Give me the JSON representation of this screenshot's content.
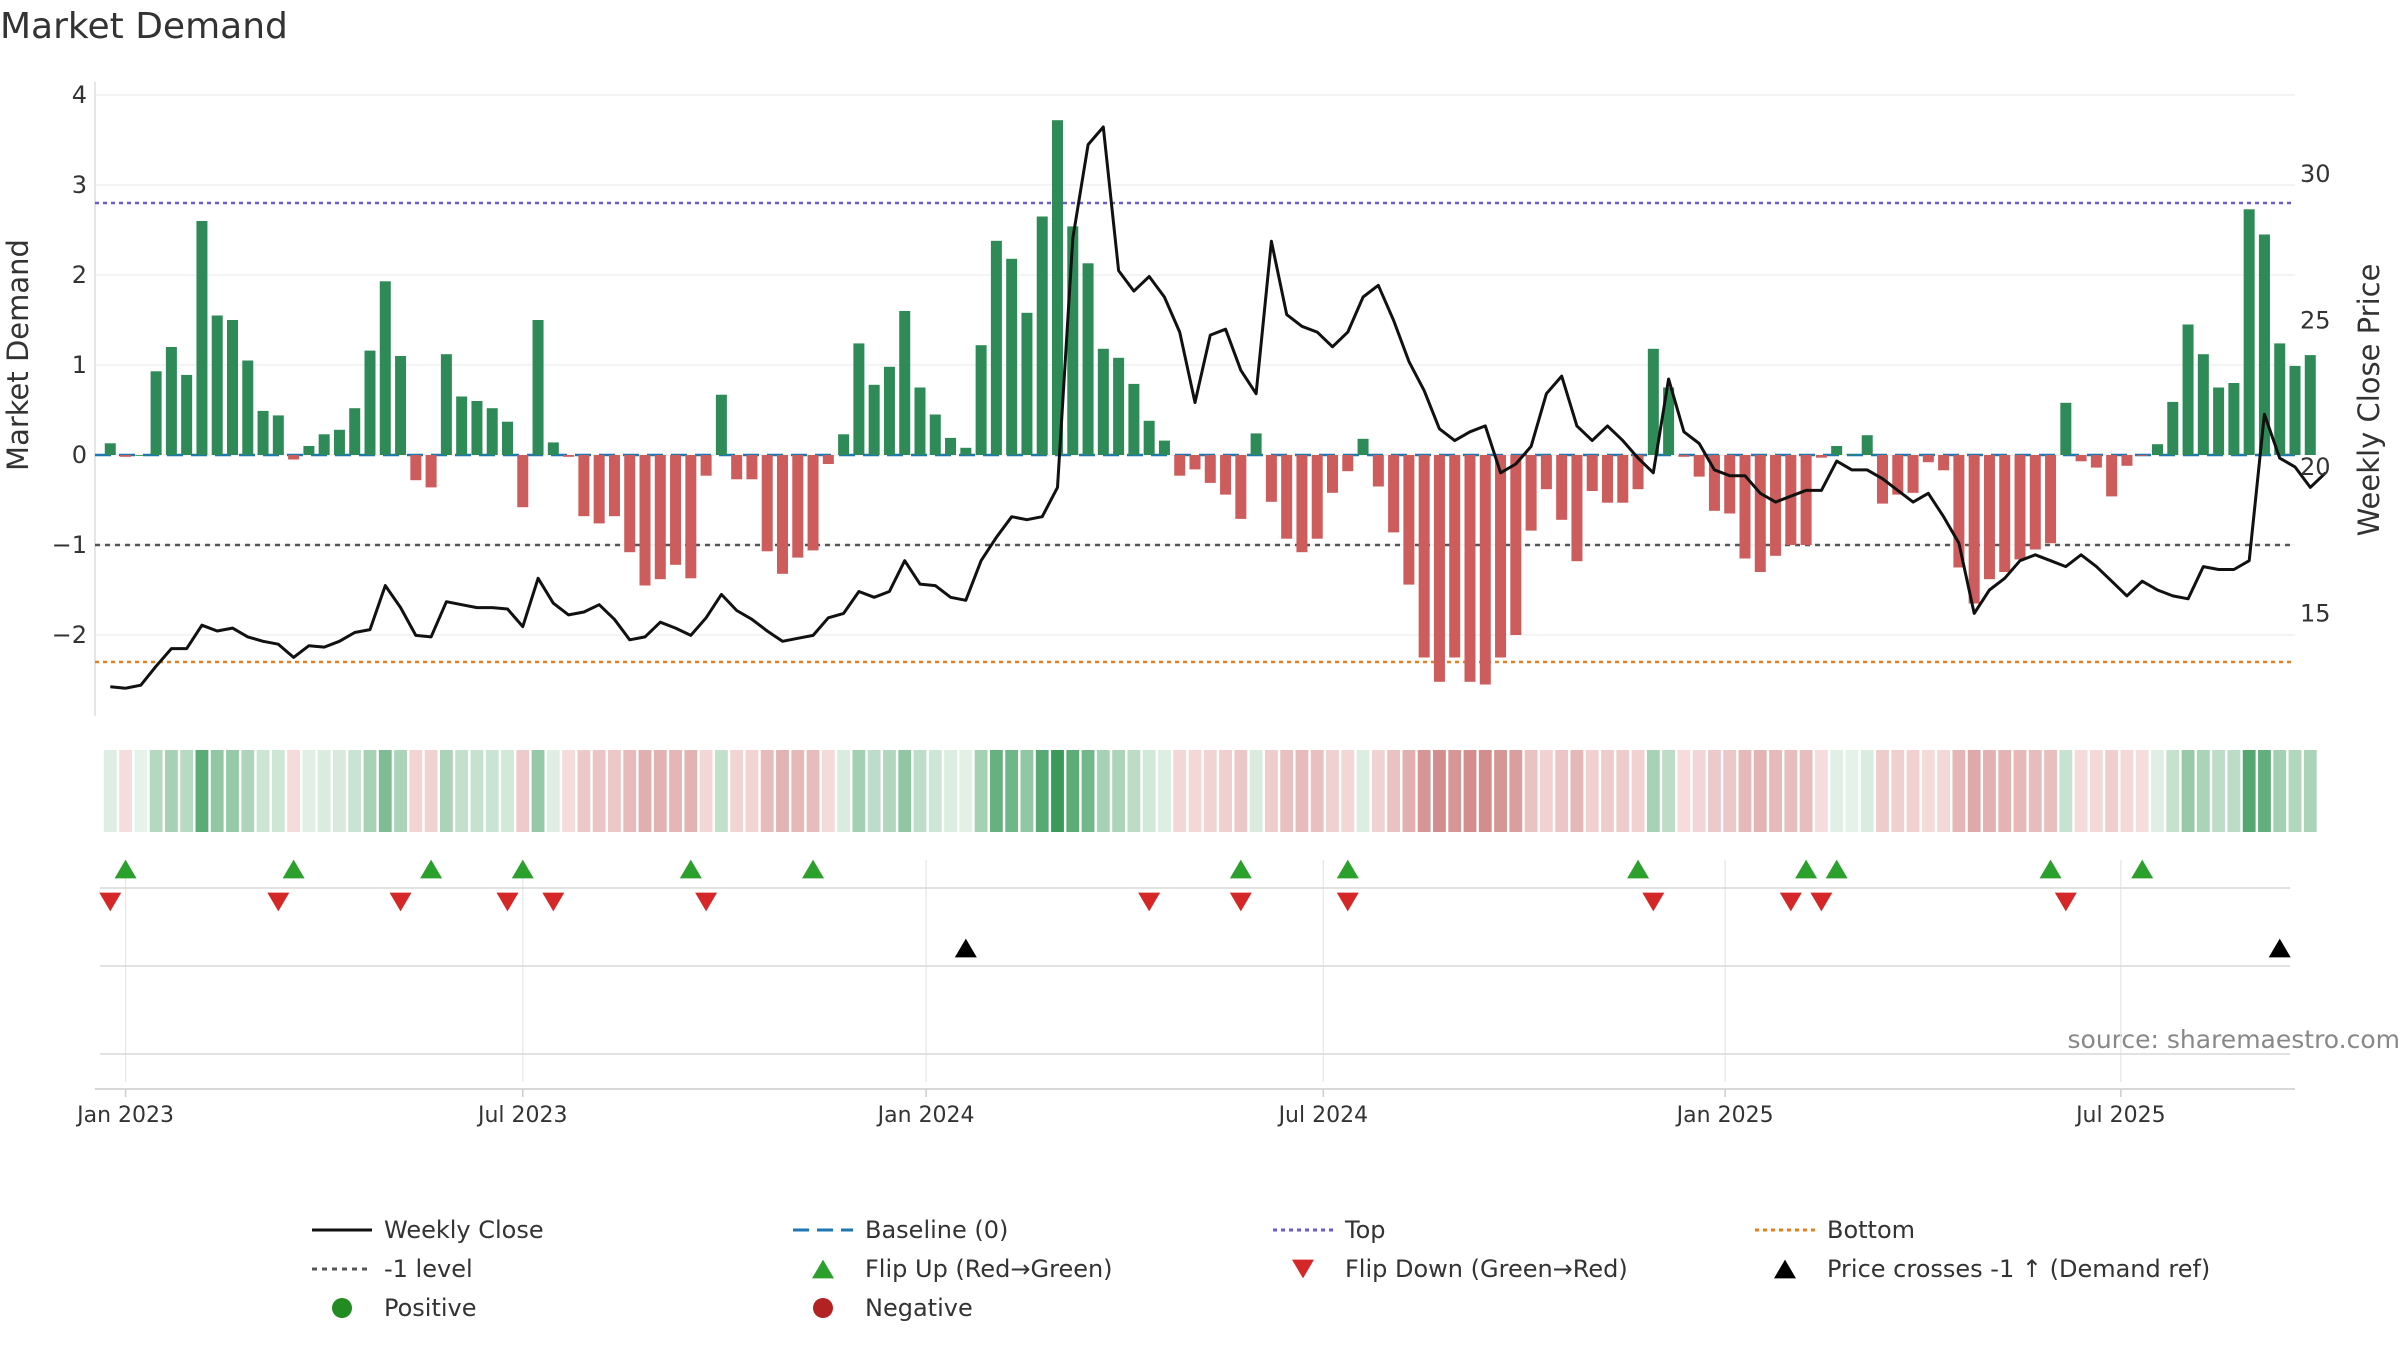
{
  "chart_data": {
    "type": "bar",
    "title": "Market Demand",
    "ylabel_left": "Market Demand",
    "ylabel_right": "Weekly Close Price",
    "ylim_left": [
      -2.9,
      4.1
    ],
    "ylim_right": [
      11.5,
      33
    ],
    "yticks_left": [
      {
        "v": -2,
        "label": "−2"
      },
      {
        "v": -1,
        "label": "−1"
      },
      {
        "v": 0,
        "label": "0"
      },
      {
        "v": 1,
        "label": "1"
      },
      {
        "v": 2,
        "label": "2"
      },
      {
        "v": 3,
        "label": "3"
      },
      {
        "v": 4,
        "label": "4"
      }
    ],
    "yticks_right": [
      15,
      20,
      25,
      30
    ],
    "x_start_week": -1,
    "x_end_week": 143,
    "xticks": [
      {
        "week": 1,
        "label": "Jan 2023"
      },
      {
        "week": 27,
        "label": "Jul 2023"
      },
      {
        "week": 53.4,
        "label": "Jan 2024"
      },
      {
        "week": 79.4,
        "label": "Jul 2024"
      },
      {
        "week": 105.7,
        "label": "Jan 2025"
      },
      {
        "week": 131.6,
        "label": "Jul 2025"
      }
    ],
    "reference_lines": {
      "baseline": 0,
      "top": 2.8,
      "bottom": -2.3,
      "level": -1
    },
    "demand": [
      0.13,
      -0.02,
      0,
      0.93,
      1.2,
      0.89,
      2.6,
      1.55,
      1.5,
      1.05,
      0.49,
      0.44,
      -0.05,
      0.1,
      0.23,
      0.28,
      0.52,
      1.16,
      1.93,
      1.1,
      -0.28,
      -0.36,
      1.12,
      0.65,
      0.6,
      0.52,
      0.37,
      -0.58,
      1.5,
      0.14,
      -0.02,
      -0.68,
      -0.76,
      -0.68,
      -1.08,
      -1.45,
      -1.38,
      -1.22,
      -1.37,
      -0.23,
      0.67,
      -0.27,
      -0.27,
      -1.07,
      -1.32,
      -1.14,
      -1.06,
      -0.1,
      0.23,
      1.24,
      0.78,
      0.98,
      1.6,
      0.75,
      0.45,
      0.19,
      0.08,
      1.22,
      2.38,
      2.18,
      1.58,
      2.65,
      3.72,
      2.54,
      2.13,
      1.18,
      1.08,
      0.79,
      0.38,
      0.16,
      -0.23,
      -0.16,
      -0.31,
      -0.44,
      -0.71,
      0.24,
      -0.52,
      -0.93,
      -1.08,
      -0.93,
      -0.42,
      -0.18,
      0.18,
      -0.35,
      -0.86,
      -1.44,
      -2.25,
      -2.52,
      -2.25,
      -2.52,
      -2.55,
      -2.25,
      -2.0,
      -0.84,
      -0.38,
      -0.72,
      -1.18,
      -0.4,
      -0.53,
      -0.53,
      -0.38,
      1.18,
      0.75,
      -0.02,
      -0.24,
      -0.62,
      -0.65,
      -1.15,
      -1.3,
      -1.12,
      -1.0,
      -1.0,
      -0.03,
      0.1,
      0.01,
      0.22,
      -0.54,
      -0.44,
      -0.42,
      -0.08,
      -0.17,
      -1.25,
      -1.65,
      -1.38,
      -1.3,
      -1.16,
      -1.05,
      -0.98,
      0.58,
      -0.07,
      -0.14,
      -0.46,
      -0.12,
      -0.01,
      0.12,
      0.59,
      1.45,
      1.12,
      0.75,
      0.8,
      2.73,
      2.45,
      1.24,
      0.99,
      1.11
    ],
    "price": [
      12.5,
      12.45,
      12.55,
      13.2,
      13.8,
      13.8,
      14.6,
      14.4,
      14.5,
      14.2,
      14.05,
      13.95,
      13.5,
      13.9,
      13.85,
      14.05,
      14.35,
      14.45,
      15.95,
      15.2,
      14.25,
      14.2,
      15.4,
      15.3,
      15.2,
      15.2,
      15.15,
      14.55,
      16.2,
      15.35,
      14.95,
      15.05,
      15.3,
      14.8,
      14.1,
      14.2,
      14.7,
      14.5,
      14.25,
      14.85,
      15.65,
      15.1,
      14.8,
      14.4,
      14.05,
      14.15,
      14.25,
      14.85,
      15.0,
      15.75,
      15.55,
      15.75,
      16.8,
      16.0,
      15.95,
      15.55,
      15.45,
      16.8,
      17.6,
      18.3,
      18.2,
      18.3,
      19.3,
      27.8,
      31.0,
      31.6,
      26.7,
      26.0,
      26.5,
      25.8,
      24.6,
      22.2,
      24.5,
      24.7,
      23.3,
      22.5,
      27.7,
      25.2,
      24.8,
      24.6,
      24.1,
      24.6,
      25.8,
      26.2,
      25.0,
      23.6,
      22.6,
      21.3,
      20.9,
      21.2,
      21.4,
      19.8,
      20.1,
      20.7,
      22.5,
      23.1,
      21.4,
      20.9,
      21.4,
      20.9,
      20.3,
      19.8,
      23.0,
      21.2,
      20.8,
      19.9,
      19.7,
      19.7,
      19.1,
      18.8,
      19.0,
      19.2,
      19.2,
      20.2,
      19.9,
      19.9,
      19.6,
      19.2,
      18.8,
      19.1,
      18.3,
      17.4,
      15.0,
      15.8,
      16.2,
      16.8,
      17.0,
      16.8,
      16.6,
      17.0,
      16.6,
      16.1,
      15.6,
      16.1,
      15.8,
      15.6,
      15.5,
      16.6,
      16.5,
      16.5,
      16.8,
      21.8,
      20.3,
      20.0,
      19.3,
      19.8
    ],
    "flip_up_weeks": [
      1,
      12,
      21,
      27,
      38,
      46,
      74,
      81,
      100,
      111,
      113,
      127,
      133
    ],
    "flip_down_weeks": [
      0,
      11,
      19,
      26,
      29,
      39,
      68,
      74,
      81,
      101,
      110,
      112,
      128
    ],
    "price_cross_weeks": [
      56,
      142
    ],
    "colors": {
      "pos_bar": "#2e8b57",
      "neg_bar": "#cd5c5c",
      "price_line": "#111111",
      "baseline": "#1f77b4",
      "top": "#6a5acd",
      "bottom": "#e67e22",
      "level": "#555555",
      "flip_up": "#2ca02c",
      "flip_down": "#d62728",
      "cross": "#000000",
      "legend_positive": "#228b22",
      "legend_negative": "#b22222"
    },
    "legend": [
      {
        "label": "Weekly Close",
        "kind": "solid-line"
      },
      {
        "label": "Baseline (0)",
        "kind": "dashed-line"
      },
      {
        "label": "Top",
        "kind": "dotted-top"
      },
      {
        "label": "Bottom",
        "kind": "dotted-bottom"
      },
      {
        "label": "-1 level",
        "kind": "dotted-level"
      },
      {
        "label": "Flip Up (Red→Green)",
        "kind": "tri-up"
      },
      {
        "label": "Flip Down (Green→Red)",
        "kind": "tri-down"
      },
      {
        "label": "Price crosses -1 ↑ (Demand ref)",
        "kind": "tri-cross"
      },
      {
        "label": "Positive",
        "kind": "dot-pos"
      },
      {
        "label": "Negative",
        "kind": "dot-neg"
      }
    ],
    "source": "source: sharemaestro.com"
  }
}
